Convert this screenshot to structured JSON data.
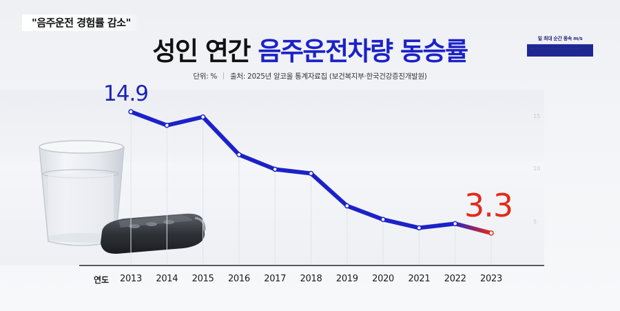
{
  "headline_tag": "\"음주운전 경험률 감소\"",
  "title": {
    "part1": "성인 연간",
    "part2": "음주운전차량 동승률"
  },
  "subtitle": {
    "unit": "단위: %",
    "source": "출처: 2025년 알코올 통계자료집 (보건복지부·한국건강증진개발원)"
  },
  "inset": {
    "title": "일 최대 순간 풍속 m/s",
    "bar_text": "···· ····· ···· ·· · ······ ··· ·· ···"
  },
  "colors": {
    "line": "#1c22c7",
    "line_end": "#e32a1a",
    "title_accent": "#1c22c7",
    "first_label": "#1c22b4",
    "last_label": "#e32a1a",
    "axis": "#555a60"
  },
  "illustration": {
    "description": "glass of soju/water and car key fob",
    "glass_icon": "glass-icon",
    "key_icon": "car-key-icon"
  },
  "chart_data": {
    "type": "line",
    "title": "성인 연간 음주운전차량 동승률",
    "subtitle": "단위: % | 출처: 2025년 알코올 통계자료집 (보건복지부·한국건강증진개발원)",
    "xlabel": "연도",
    "ylabel": "%",
    "categories": [
      "2013",
      "2014",
      "2015",
      "2016",
      "2017",
      "2018",
      "2019",
      "2020",
      "2021",
      "2022",
      "2023"
    ],
    "series": [
      {
        "name": "음주운전차량 동승률",
        "values": [
          14.9,
          13.6,
          14.4,
          10.8,
          9.4,
          9.0,
          5.9,
          4.6,
          3.8,
          4.2,
          3.3
        ]
      }
    ],
    "annotations": [
      {
        "category": "2013",
        "text": "14.9"
      },
      {
        "category": "2023",
        "text": "3.3"
      }
    ],
    "y_ticks": [
      "15",
      "10",
      "5"
    ],
    "ylim": [
      0,
      16
    ],
    "grid": "vertical faint lines",
    "legend": "none"
  },
  "first_label": "14.9",
  "last_label": "3.3"
}
